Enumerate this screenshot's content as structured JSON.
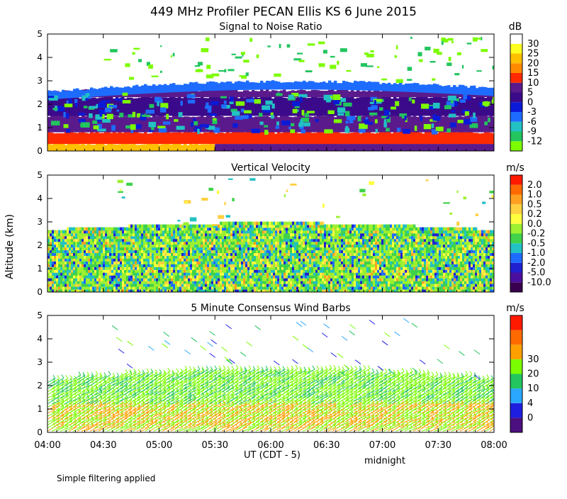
{
  "title": "449 MHz Profiler PECAN Ellis KS  6 June 2015",
  "ylabel": "Altitude (km)",
  "xlabel": "UT  (CDT - 5)",
  "xnote": "midnight",
  "footer": "Simple filtering applied",
  "chart_data": [
    {
      "type": "heatmap",
      "title": "Signal to Noise Ratio",
      "unit": "dB",
      "x": [
        "04:00",
        "04:30",
        "05:00",
        "05:30",
        "06:00",
        "06:30",
        "07:00",
        "07:30",
        "08:00"
      ],
      "xlim": [
        "04:00",
        "08:00"
      ],
      "ylim": [
        0,
        5
      ],
      "yticks": [
        0,
        1,
        2,
        3,
        4,
        5
      ],
      "colorbar": {
        "levels": [
          "-12",
          "-9",
          "-6",
          "-3",
          "0",
          "5",
          "10",
          "15",
          "20",
          "25",
          "30"
        ],
        "colors": [
          "#7CFC00",
          "#22c55e",
          "#22c1c3",
          "#1e6cff",
          "#0a1ad8",
          "#3b0a8a",
          "#5a1a8c",
          "#ff2a00",
          "#ff8a00",
          "#ffc000",
          "#ffff20",
          "#ffffff"
        ]
      },
      "layers": [
        {
          "from": 0.0,
          "to": 0.3,
          "value": "20"
        },
        {
          "from": 0.3,
          "to": 0.8,
          "value": "10"
        },
        {
          "from": 0.8,
          "to": 1.5,
          "value": "5"
        },
        {
          "from": 1.5,
          "to": 2.3,
          "value": "0"
        },
        {
          "from": 2.3,
          "to": 2.6,
          "value": "5"
        },
        {
          "from": 2.6,
          "to": 3.0,
          "value": "-6"
        }
      ]
    },
    {
      "type": "heatmap",
      "title": "Vertical Velocity",
      "unit": "m/s",
      "xlim": [
        "04:00",
        "08:00"
      ],
      "ylim": [
        0,
        5
      ],
      "yticks": [
        0,
        1,
        2,
        3,
        4,
        5
      ],
      "colorbar": {
        "levels": [
          "-10.0",
          "-5.0",
          "-2.0",
          "-1.0",
          "-0.5",
          "-0.2",
          "0.0",
          "0.2",
          "0.5",
          "1.0",
          "2.0"
        ],
        "colors": [
          "#3a0050",
          "#4b0fa0",
          "#2020d0",
          "#1e6cff",
          "#22c1c3",
          "#3fd24a",
          "#9cf030",
          "#ffff40",
          "#ffd040",
          "#ffa020",
          "#ff6a00",
          "#ff1a00"
        ]
      }
    },
    {
      "type": "scatter",
      "title": "5 Minute Consensus Wind Barbs",
      "unit": "m/s",
      "xlim": [
        "04:00",
        "08:00"
      ],
      "ylim": [
        0,
        5
      ],
      "yticks": [
        0,
        1,
        2,
        3,
        4,
        5
      ],
      "colorbar": {
        "levels": [
          "0",
          "4",
          "10",
          "20",
          "30"
        ],
        "colors": [
          "#4b0f80",
          "#1e1ee0",
          "#2aa8ff",
          "#22c55e",
          "#7CFC00",
          "#ffa000",
          "#ff6a00",
          "#ff1a00"
        ]
      }
    }
  ]
}
